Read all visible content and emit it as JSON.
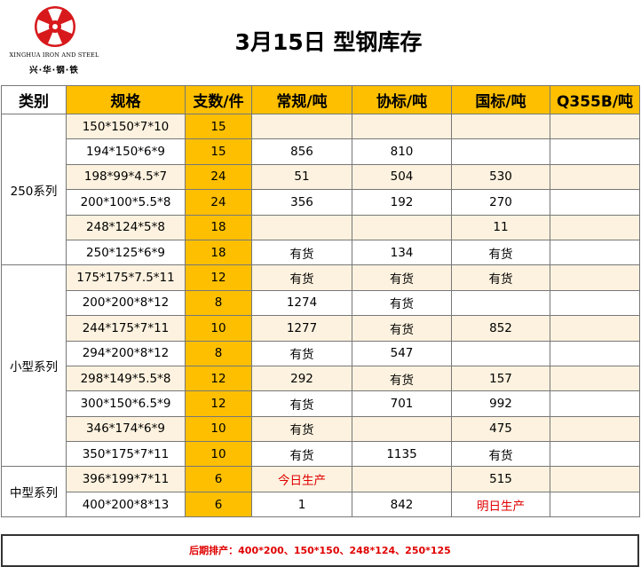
{
  "logo": {
    "en": "XINGHUA IRON AND STEEL",
    "cn": "兴·华·钢·铁"
  },
  "title": "3月15日 型钢库存",
  "headers": [
    "类别",
    "规格",
    "支数/件",
    "常规/吨",
    "协标/吨",
    "国标/吨",
    "Q355B/吨"
  ],
  "groups": [
    {
      "name": "250系列",
      "rows": [
        {
          "spec": "150*150*7*10",
          "qty": "15",
          "regular": "",
          "assoc": "",
          "national": "",
          "q355b": ""
        },
        {
          "spec": "194*150*6*9",
          "qty": "15",
          "regular": "856",
          "assoc": "810",
          "national": "",
          "q355b": ""
        },
        {
          "spec": "198*99*4.5*7",
          "qty": "24",
          "regular": "51",
          "assoc": "504",
          "national": "530",
          "q355b": ""
        },
        {
          "spec": "200*100*5.5*8",
          "qty": "24",
          "regular": "356",
          "assoc": "192",
          "national": "270",
          "q355b": ""
        },
        {
          "spec": "248*124*5*8",
          "qty": "18",
          "regular": "",
          "assoc": "",
          "national": "11",
          "q355b": ""
        },
        {
          "spec": "250*125*6*9",
          "qty": "18",
          "regular": "有货",
          "assoc": "134",
          "national": "有货",
          "q355b": ""
        }
      ]
    },
    {
      "name": "小型系列",
      "rows": [
        {
          "spec": "175*175*7.5*11",
          "qty": "12",
          "regular": "有货",
          "assoc": "有货",
          "national": "有货",
          "q355b": ""
        },
        {
          "spec": "200*200*8*12",
          "qty": "8",
          "regular": "1274",
          "assoc": "有货",
          "national": "",
          "q355b": ""
        },
        {
          "spec": "244*175*7*11",
          "qty": "10",
          "regular": "1277",
          "assoc": "有货",
          "national": "852",
          "q355b": ""
        },
        {
          "spec": "294*200*8*12",
          "qty": "8",
          "regular": "有货",
          "assoc": "547",
          "national": "",
          "q355b": ""
        },
        {
          "spec": "298*149*5.5*8",
          "qty": "12",
          "regular": "292",
          "assoc": "有货",
          "national": "157",
          "q355b": ""
        },
        {
          "spec": "300*150*6.5*9",
          "qty": "12",
          "regular": "有货",
          "assoc": "701",
          "national": "992",
          "q355b": ""
        },
        {
          "spec": "346*174*6*9",
          "qty": "10",
          "regular": "有货",
          "assoc": "",
          "national": "475",
          "q355b": ""
        },
        {
          "spec": "350*175*7*11",
          "qty": "10",
          "regular": "有货",
          "assoc": "1135",
          "national": "有货",
          "q355b": ""
        }
      ]
    },
    {
      "name": "中型系列",
      "rows": [
        {
          "spec": "396*199*7*11",
          "qty": "6",
          "regular": "今日生产",
          "assoc": "",
          "national": "515",
          "q355b": ""
        },
        {
          "spec": "400*200*8*13",
          "qty": "6",
          "regular": "1",
          "assoc": "842",
          "national": "明日生产",
          "q355b": ""
        }
      ]
    }
  ],
  "highlight_values": [
    "今日生产",
    "明日生产"
  ],
  "footer": "后期排产：400*200、150*150、248*124、250*125",
  "colors": {
    "header_gold": "#fdbf00",
    "stripe": "#fdf2df",
    "logo_red": "#d7191c",
    "alert_red": "#e00000"
  }
}
